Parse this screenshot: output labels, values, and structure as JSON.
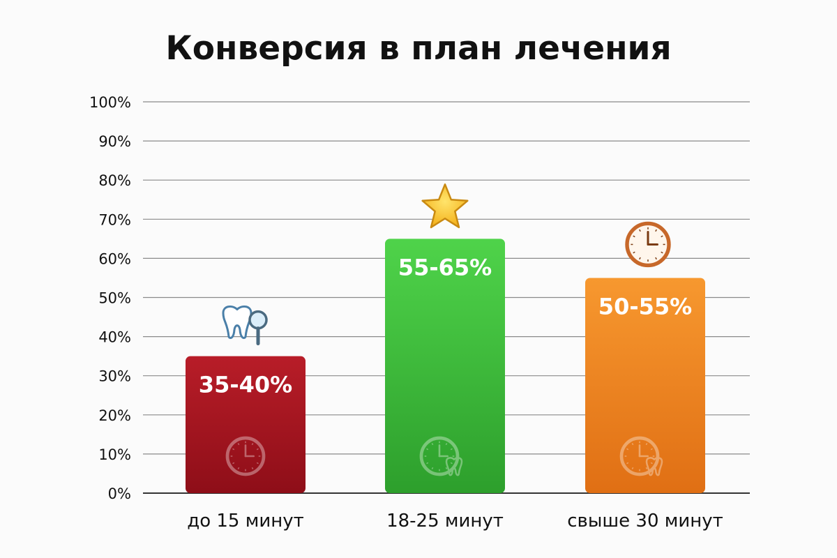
{
  "chart_data": {
    "type": "bar",
    "title": "Конверсия в план лечения",
    "xlabel": "",
    "ylabel": "",
    "ylim": [
      0,
      100
    ],
    "y_ticks": [
      "0%",
      "10%",
      "20%",
      "30%",
      "40%",
      "50%",
      "60%",
      "70%",
      "80%",
      "90%",
      "100%"
    ],
    "grid": true,
    "categories": [
      "до 15 минут",
      "18-25 минут",
      "свыше 30 минут"
    ],
    "values": [
      35,
      65,
      55
    ],
    "labels": [
      "35-40%",
      "55-65%",
      "50-55%"
    ],
    "colors": [
      "#a5121d",
      "#3fbe3a",
      "#f0821e"
    ],
    "bar_colors_top": [
      "#b81d28",
      "#4fd34a",
      "#f7982f"
    ],
    "top_icons": [
      "tooth-magnifier-icon",
      "star-icon",
      "clock-icon"
    ],
    "inner_icons": [
      "clock-icon",
      "clock-tooth-icon",
      "clock-tooth-icon"
    ]
  }
}
